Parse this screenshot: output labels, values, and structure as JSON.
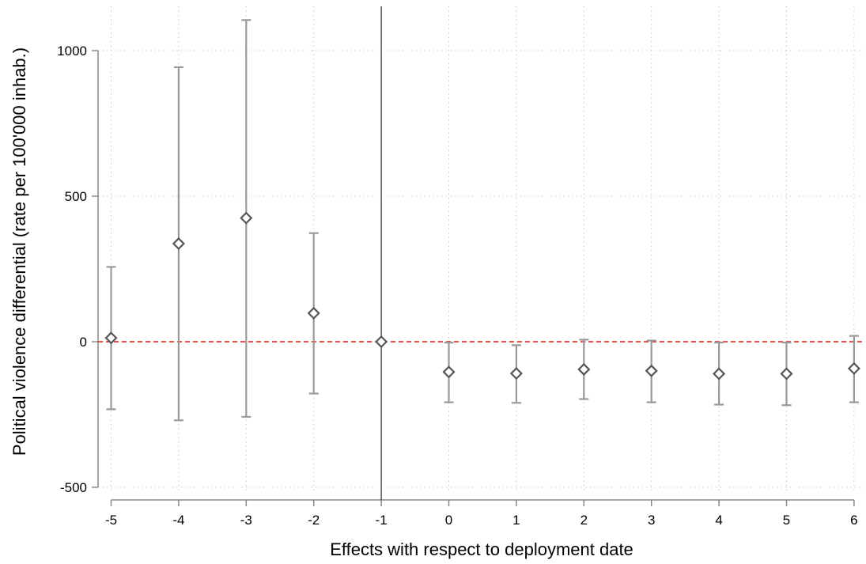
{
  "chart_data": {
    "type": "scatter",
    "xlabel": "Effects with respect to deployment date",
    "ylabel": "Political violence differential (rate per 100'000 inhab.)",
    "x_ticks": [
      -5,
      -4,
      -3,
      -2,
      -1,
      0,
      1,
      2,
      3,
      4,
      5,
      6
    ],
    "y_ticks": [
      -500,
      0,
      500,
      1000
    ],
    "xlim": [
      -5.1,
      6.05
    ],
    "ylim": [
      -540,
      1150
    ],
    "grid": true,
    "reference_lines": {
      "vertical_x": -1,
      "horizontal_y": 0,
      "horizontal_color": "#e41a1c",
      "vertical_color": "#555555"
    },
    "colors": {
      "marker": "#555555",
      "ci": "#999999",
      "grid": "#c8c8c8"
    },
    "points": [
      {
        "x": -5,
        "y": 13,
        "ci_low": -232,
        "ci_high": 257
      },
      {
        "x": -4,
        "y": 337,
        "ci_low": -270,
        "ci_high": 943
      },
      {
        "x": -3,
        "y": 425,
        "ci_low": -258,
        "ci_high": 1105
      },
      {
        "x": -2,
        "y": 98,
        "ci_low": -178,
        "ci_high": 373
      },
      {
        "x": -1,
        "y": 0,
        "ci_low": 0,
        "ci_high": 0
      },
      {
        "x": 0,
        "y": -104,
        "ci_low": -208,
        "ci_high": -3
      },
      {
        "x": 1,
        "y": -109,
        "ci_low": -210,
        "ci_high": -12
      },
      {
        "x": 2,
        "y": -95,
        "ci_low": -197,
        "ci_high": 7
      },
      {
        "x": 3,
        "y": -100,
        "ci_low": -208,
        "ci_high": 4
      },
      {
        "x": 4,
        "y": -110,
        "ci_low": -216,
        "ci_high": -3
      },
      {
        "x": 5,
        "y": -110,
        "ci_low": -218,
        "ci_high": -3
      },
      {
        "x": 6,
        "y": -92,
        "ci_low": -208,
        "ci_high": 20
      }
    ]
  }
}
